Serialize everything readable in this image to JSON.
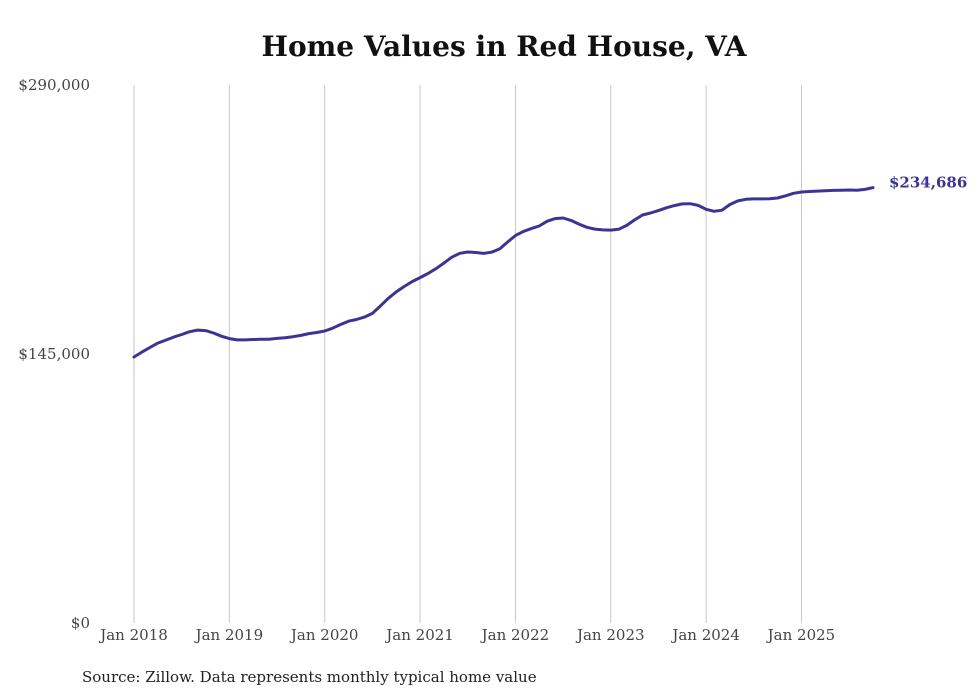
{
  "chart_data": {
    "type": "line",
    "title": "Home Values in Red House, VA",
    "xlabel": "",
    "ylabel": "",
    "ylim": [
      0,
      290000
    ],
    "yticks": [
      {
        "value": 0,
        "label": "$0"
      },
      {
        "value": 145000,
        "label": "$145,000"
      },
      {
        "value": 290000,
        "label": "$290,000"
      }
    ],
    "xticks": [
      "Jan 2018",
      "Jan 2019",
      "Jan 2020",
      "Jan 2021",
      "Jan 2022",
      "Jan 2023",
      "Jan 2024",
      "Jan 2025"
    ],
    "grid": "vertical",
    "x_start": "Jan 2018",
    "x_end": "Oct 2025",
    "series": [
      {
        "name": "Typical home value",
        "color": "#3b3494",
        "values": [
          143400,
          146000,
          148500,
          150900,
          152500,
          154100,
          155500,
          157000,
          157900,
          157600,
          156300,
          154600,
          153300,
          152600,
          152600,
          152800,
          152900,
          153000,
          153400,
          153800,
          154300,
          155000,
          156000,
          156600,
          157400,
          158900,
          160900,
          162700,
          163600,
          164900,
          166900,
          170800,
          175000,
          178500,
          181400,
          184000,
          186200,
          188400,
          191000,
          194000,
          197200,
          199300,
          200000,
          199700,
          199200,
          199900,
          201600,
          205300,
          208800,
          211100,
          212600,
          214000,
          216600,
          218000,
          218300,
          217000,
          215000,
          213300,
          212300,
          211900,
          211800,
          212200,
          214300,
          217300,
          219900,
          221000,
          222300,
          223800,
          225000,
          225900,
          226000,
          225100,
          223000,
          221900,
          222500,
          225600,
          227500,
          228400,
          228600,
          228600,
          228700,
          229100,
          230300,
          231600,
          232300,
          232600,
          232800,
          233000,
          233200,
          233300,
          233400,
          233300,
          233700,
          234686
        ]
      }
    ],
    "end_label": "$234,686",
    "source": "Source: Zillow. Data represents monthly typical home value"
  }
}
